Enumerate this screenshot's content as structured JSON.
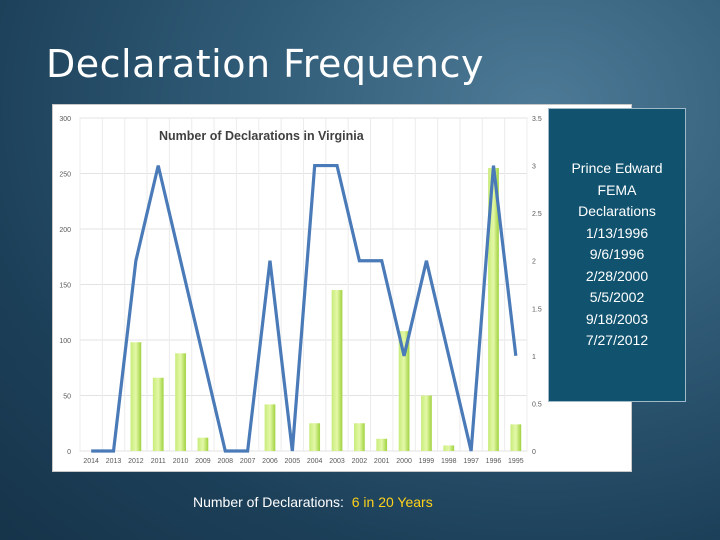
{
  "slide": {
    "title": "Declaration Frequency"
  },
  "info_box": {
    "lines": [
      "Prince Edward",
      "FEMA",
      "Declarations",
      "1/13/1996",
      "9/6/1996",
      "2/28/2000",
      "5/5/2002",
      "9/18/2003",
      "7/27/2012"
    ]
  },
  "footer": {
    "label": "Number of Declarations:",
    "value": "6 in 20 Years",
    "value_color": "#ffd21a"
  },
  "chart_data": {
    "type": "bar",
    "title": "Number of Declarations in Virginia",
    "categories": [
      "2014",
      "2013",
      "2012",
      "2011",
      "2010",
      "2009",
      "2008",
      "2007",
      "2006",
      "2005",
      "2004",
      "2003",
      "2002",
      "2001",
      "2000",
      "1999",
      "1998",
      "1997",
      "1996",
      "1995"
    ],
    "series": [
      {
        "kind": "bar",
        "axis": "left",
        "color": "#a8d84a",
        "values": [
          0,
          0,
          98,
          66,
          88,
          12,
          0,
          0,
          42,
          0,
          25,
          145,
          25,
          11,
          108,
          50,
          5,
          0,
          255,
          24
        ]
      },
      {
        "kind": "line",
        "axis": "right",
        "color": "#4a7bb8",
        "values": [
          0,
          0,
          2,
          3,
          2,
          1,
          0,
          0,
          2,
          0,
          3,
          3,
          2,
          2,
          1,
          2,
          1,
          0,
          3,
          1
        ]
      }
    ],
    "y_left": {
      "ylim": [
        0,
        300
      ],
      "ticks": [
        "0",
        "50",
        "100",
        "150",
        "200",
        "250",
        "300"
      ]
    },
    "y_right": {
      "ylim": [
        0,
        3.5
      ],
      "ticks": [
        "0",
        "0.5",
        "1",
        "1.5",
        "2",
        "2.5",
        "3",
        "3.5"
      ]
    },
    "grid": true,
    "legend": "none"
  }
}
